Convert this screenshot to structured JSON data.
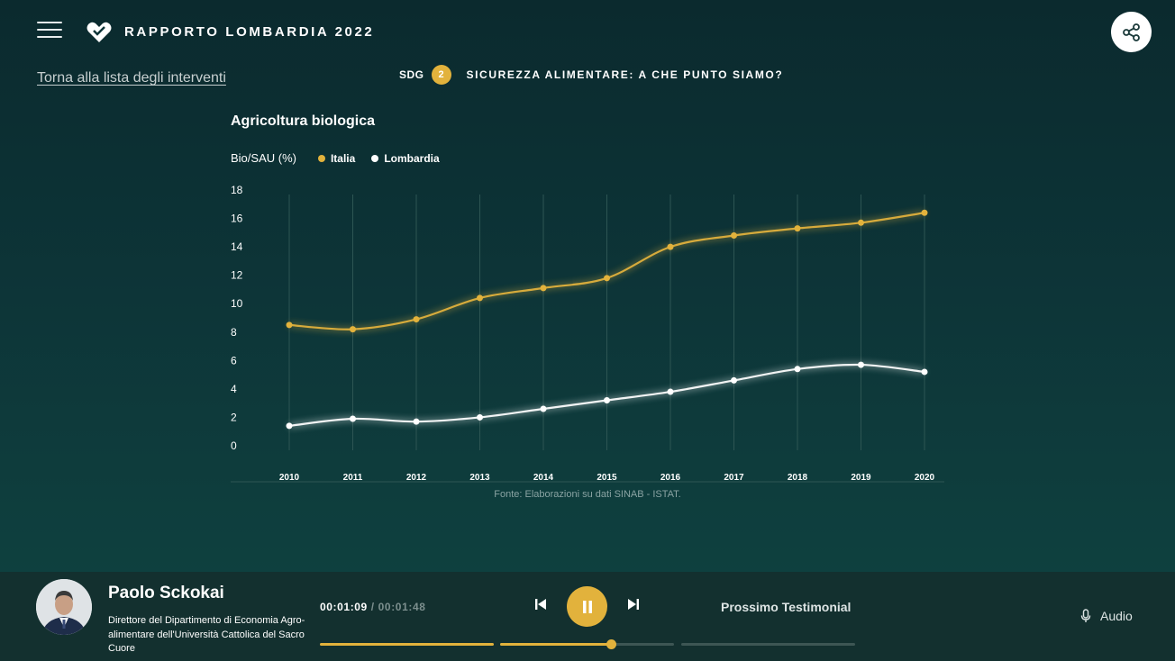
{
  "header": {
    "menu_icon": "hamburger-icon",
    "logo_icon": "heart-logo-icon",
    "title": "RAPPORTO LOMBARDIA 2022",
    "share_icon": "share-icon"
  },
  "nav": {
    "back_link": "Torna alla lista degli interventi",
    "sdg_label": "SDG",
    "sdg_number": "2",
    "sdg_title": "SICUREZZA ALIMENTARE: A CHE PUNTO SIAMO?"
  },
  "colors": {
    "accent": "#e2b23c",
    "lombardia": "#ffffff",
    "background": "#0d3538"
  },
  "chart_data": {
    "type": "line",
    "title": "Agricoltura biologica",
    "ylabel": "Bio/SAU (%)",
    "xlabel": "",
    "x": [
      "2010",
      "2011",
      "2012",
      "2013",
      "2014",
      "2015",
      "2016",
      "2017",
      "2018",
      "2019",
      "2020"
    ],
    "ylim": [
      0,
      18
    ],
    "yticks": [
      0,
      2,
      4,
      6,
      8,
      10,
      12,
      14,
      16,
      18
    ],
    "grid": "vertical",
    "legend_position": "top-left",
    "series": [
      {
        "name": "Italia",
        "color": "#e2b23c",
        "values": [
          8.5,
          8.2,
          8.9,
          10.4,
          11.1,
          11.8,
          14.0,
          14.8,
          15.3,
          15.7,
          16.4
        ]
      },
      {
        "name": "Lombardia",
        "color": "#ffffff",
        "values": [
          1.4,
          1.9,
          1.7,
          2.0,
          2.6,
          3.2,
          3.8,
          4.6,
          5.4,
          5.7,
          5.2
        ]
      }
    ],
    "source": "Fonte: Elaborazioni su dati SINAB - ISTAT."
  },
  "player": {
    "speaker_name": "Paolo Sckokai",
    "speaker_role": "Direttore del Dipartimento di Economia Agro-alimentare dell'Università Cattolica del Sacro Cuore",
    "current_time": "00:01:09",
    "separator": "/",
    "total_time": "00:01:48",
    "progress": 0.64,
    "prev_icon": "skip-previous-icon",
    "pause_icon": "pause-icon",
    "next_icon": "skip-next-icon",
    "next_label": "Prossimo Testimonial",
    "audio_label": "Audio",
    "audio_icon": "microphone-icon"
  }
}
